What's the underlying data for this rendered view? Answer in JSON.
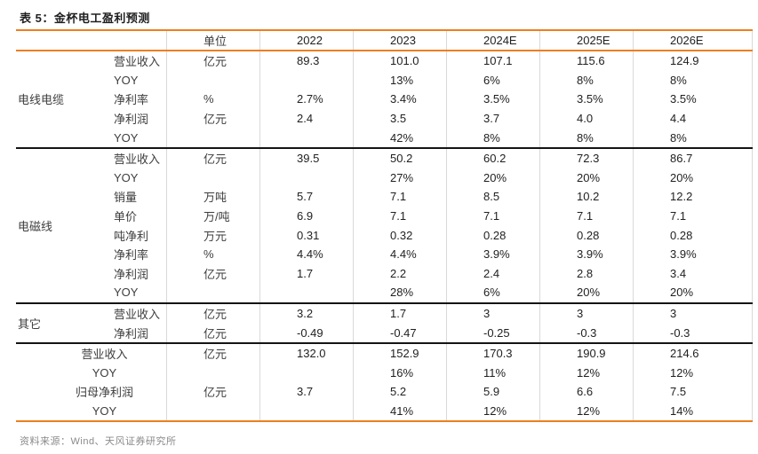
{
  "title": "表 5：金杯电工盈利预测",
  "source": "资料来源：Wind、天风证券研究所",
  "colors": {
    "accent": "#EE7E20",
    "section_divider": "#141414",
    "column_divider": "#d9d9d9"
  },
  "header": {
    "unit": "单位",
    "years": [
      "2022",
      "2023",
      "2024E",
      "2025E",
      "2026E"
    ]
  },
  "sections": [
    {
      "group": "电线电缆",
      "rows": [
        {
          "metric": "营业收入",
          "unit": "亿元",
          "values": [
            "89.3",
            "101.0",
            "107.1",
            "115.6",
            "124.9"
          ]
        },
        {
          "metric": "YOY",
          "unit": "",
          "values": [
            "",
            "13%",
            "6%",
            "8%",
            "8%"
          ]
        },
        {
          "metric": "净利率",
          "unit": "%",
          "values": [
            "2.7%",
            "3.4%",
            "3.5%",
            "3.5%",
            "3.5%"
          ]
        },
        {
          "metric": "净利润",
          "unit": "亿元",
          "values": [
            "2.4",
            "3.5",
            "3.7",
            "4.0",
            "4.4"
          ]
        },
        {
          "metric": "YOY",
          "unit": "",
          "values": [
            "",
            "42%",
            "8%",
            "8%",
            "8%"
          ]
        }
      ]
    },
    {
      "group": "电磁线",
      "rows": [
        {
          "metric": "营业收入",
          "unit": "亿元",
          "values": [
            "39.5",
            "50.2",
            "60.2",
            "72.3",
            "86.7"
          ]
        },
        {
          "metric": "YOY",
          "unit": "",
          "values": [
            "",
            "27%",
            "20%",
            "20%",
            "20%"
          ]
        },
        {
          "metric": "销量",
          "unit": "万吨",
          "values": [
            "5.7",
            "7.1",
            "8.5",
            "10.2",
            "12.2"
          ]
        },
        {
          "metric": "单价",
          "unit": "万/吨",
          "values": [
            "6.9",
            "7.1",
            "7.1",
            "7.1",
            "7.1"
          ]
        },
        {
          "metric": "吨净利",
          "unit": "万元",
          "values": [
            "0.31",
            "0.32",
            "0.28",
            "0.28",
            "0.28"
          ]
        },
        {
          "metric": "净利率",
          "unit": "%",
          "values": [
            "4.4%",
            "4.4%",
            "3.9%",
            "3.9%",
            "3.9%"
          ]
        },
        {
          "metric": "净利润",
          "unit": "亿元",
          "values": [
            "1.7",
            "2.2",
            "2.4",
            "2.8",
            "3.4"
          ]
        },
        {
          "metric": "YOY",
          "unit": "",
          "values": [
            "",
            "28%",
            "6%",
            "20%",
            "20%"
          ]
        }
      ]
    },
    {
      "group": "其它",
      "rows": [
        {
          "metric": "营业收入",
          "unit": "亿元",
          "values": [
            "3.2",
            "1.7",
            "3",
            "3",
            "3"
          ]
        },
        {
          "metric": "净利润",
          "unit": "亿元",
          "values": [
            "-0.49",
            "-0.47",
            "-0.25",
            "-0.3",
            "-0.3"
          ]
        }
      ]
    },
    {
      "group": "",
      "total": true,
      "rows": [
        {
          "metric": "营业收入",
          "unit": "亿元",
          "values": [
            "132.0",
            "152.9",
            "170.3",
            "190.9",
            "214.6"
          ]
        },
        {
          "metric": "YOY",
          "unit": "",
          "values": [
            "",
            "16%",
            "11%",
            "12%",
            "12%"
          ]
        },
        {
          "metric": "归母净利润",
          "unit": "亿元",
          "values": [
            "3.7",
            "5.2",
            "5.9",
            "6.6",
            "7.5"
          ]
        },
        {
          "metric": "YOY",
          "unit": "",
          "values": [
            "",
            "41%",
            "12%",
            "12%",
            "14%"
          ]
        }
      ]
    }
  ]
}
